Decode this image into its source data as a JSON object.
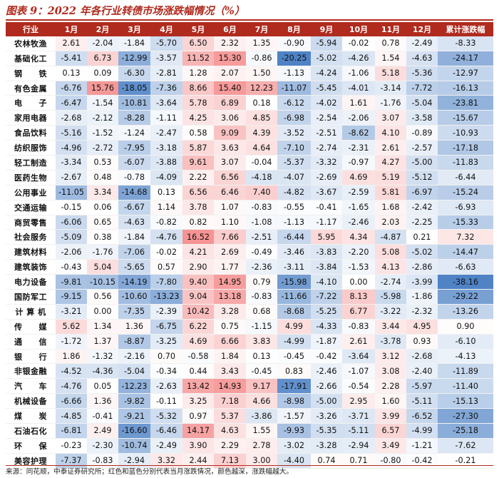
{
  "title": "图表 9：2022 年各行业转债市场涨跌幅情况（%）",
  "header": [
    "行业",
    "1月",
    "2月",
    "3月",
    "4月",
    "5月",
    "6月",
    "7月",
    "8月",
    "9月",
    "10月",
    "11月",
    "12月",
    "累计涨跌幅"
  ],
  "rows": [
    {
      "industry": "农林牧渔",
      "values": [
        "2.61",
        "-2.04",
        "-1.84",
        "-5.70",
        "6.50",
        "2.32",
        "1.35",
        "-0.90",
        "-5.94",
        "-0.02",
        "0.78",
        "-2.49",
        "-8.33"
      ]
    },
    {
      "industry": "基础化工",
      "values": [
        "-5.41",
        "6.73",
        "-12.99",
        "-3.57",
        "11.52",
        "15.30",
        "-0.86",
        "-20.25",
        "-5.02",
        "-4.26",
        "1.54",
        "-4.63",
        "-24.17"
      ]
    },
    {
      "industry": "钢　　铁",
      "values": [
        "0.13",
        "0.09",
        "-6.30",
        "-2.81",
        "1.28",
        "2.07",
        "1.50",
        "-1.13",
        "-4.24",
        "-1.06",
        "5.18",
        "-5.36",
        "-12.97"
      ]
    },
    {
      "industry": "有色金属",
      "values": [
        "-6.76",
        "15.76",
        "-18.05",
        "-7.36",
        "8.66",
        "15.40",
        "12.23",
        "-11.07",
        "-5.45",
        "-4.01",
        "-3.14",
        "-7.72",
        "-16.13"
      ]
    },
    {
      "industry": "电　　子",
      "values": [
        "-6.47",
        "-1.54",
        "-10.81",
        "-3.64",
        "5.78",
        "6.89",
        "0.18",
        "-6.12",
        "-4.02",
        "1.61",
        "-1.76",
        "-5.04",
        "-23.81"
      ]
    },
    {
      "industry": "家用电器",
      "values": [
        "-2.68",
        "-2.12",
        "-8.28",
        "-1.11",
        "4.25",
        "3.06",
        "4.85",
        "-6.98",
        "-2.54",
        "-2.06",
        "3.07",
        "-3.58",
        "-15.67"
      ]
    },
    {
      "industry": "食品饮料",
      "values": [
        "-5.16",
        "-1.52",
        "-1.24",
        "-2.47",
        "0.58",
        "9.09",
        "4.39",
        "-3.52",
        "-2.51",
        "-8.62",
        "4.10",
        "-0.89",
        "-10.93"
      ]
    },
    {
      "industry": "纺织服饰",
      "values": [
        "-4.96",
        "-2.72",
        "-7.95",
        "-3.18",
        "5.87",
        "3.63",
        "4.64",
        "-7.10",
        "-2.74",
        "-2.31",
        "2.61",
        "-2.57",
        "-17.18"
      ]
    },
    {
      "industry": "轻工制造",
      "values": [
        "-3.34",
        "0.53",
        "-6.07",
        "-3.88",
        "9.61",
        "3.07",
        "-0.04",
        "-5.37",
        "-3.32",
        "-0.97",
        "4.27",
        "-5.00",
        "-11.83"
      ]
    },
    {
      "industry": "医药生物",
      "values": [
        "-2.67",
        "0.48",
        "-0.78",
        "-4.09",
        "2.22",
        "6.56",
        "-4.18",
        "-4.07",
        "-2.69",
        "4.69",
        "5.19",
        "-5.12",
        "-6.44"
      ]
    },
    {
      "industry": "公用事业",
      "values": [
        "-11.05",
        "3.34",
        "-14.68",
        "0.13",
        "6.56",
        "6.46",
        "7.40",
        "-4.82",
        "-3.67",
        "-2.59",
        "5.81",
        "-6.97",
        "-15.24"
      ]
    },
    {
      "industry": "交通运输",
      "values": [
        "-0.15",
        "0.06",
        "-6.67",
        "1.14",
        "3.78",
        "1.07",
        "-0.83",
        "-0.55",
        "-0.41",
        "-1.65",
        "1.68",
        "-2.42",
        "-6.93"
      ]
    },
    {
      "industry": "商贸零售",
      "values": [
        "-6.06",
        "0.65",
        "-4.63",
        "-0.82",
        "0.82",
        "1.10",
        "-1.08",
        "-1.13",
        "-1.17",
        "-2.46",
        "2.03",
        "-2.25",
        "-15.33"
      ]
    },
    {
      "industry": "社会服务",
      "values": [
        "-5.09",
        "0.38",
        "-1.84",
        "-4.76",
        "16.52",
        "7.66",
        "-2.51",
        "-6.44",
        "5.95",
        "4.34",
        "-4.87",
        "0.21",
        "7.32"
      ]
    },
    {
      "industry": "建筑材料",
      "values": [
        "-2.06",
        "-1.76",
        "-7.06",
        "-0.02",
        "4.21",
        "2.69",
        "-0.49",
        "-3.46",
        "-3.83",
        "-2.20",
        "5.08",
        "-5.02",
        "-14.47"
      ]
    },
    {
      "industry": "建筑装饰",
      "values": [
        "-0.43",
        "5.04",
        "-5.65",
        "0.57",
        "2.90",
        "1.77",
        "-2.36",
        "-3.11",
        "-3.84",
        "-1.53",
        "4.13",
        "-2.86",
        "-6.63"
      ]
    },
    {
      "industry": "电力设备",
      "values": [
        "-9.81",
        "-10.15",
        "-14.19",
        "-7.80",
        "9.40",
        "14.95",
        "0.79",
        "-15.98",
        "-4.10",
        "0.00",
        "-2.74",
        "-3.99",
        "-38.16"
      ]
    },
    {
      "industry": "国防军工",
      "values": [
        "-9.15",
        "0.56",
        "-10.60",
        "-13.23",
        "9.04",
        "13.18",
        "-0.83",
        "-11.66",
        "-7.22",
        "8.13",
        "-5.98",
        "-1.86",
        "-29.22"
      ]
    },
    {
      "industry": "计 算 机",
      "values": [
        "-3.21",
        "0.00",
        "-7.35",
        "-2.39",
        "10.42",
        "3.28",
        "0.68",
        "-8.68",
        "-5.25",
        "6.77",
        "-3.22",
        "-2.32",
        "-13.26"
      ]
    },
    {
      "industry": "传　　媒",
      "values": [
        "5.62",
        "1.34",
        "1.36",
        "-6.75",
        "6.22",
        "0.75",
        "-1.15",
        "4.99",
        "-4.33",
        "-0.83",
        "3.44",
        "4.95",
        "0.90"
      ]
    },
    {
      "industry": "通　　信",
      "values": [
        "-1.72",
        "1.37",
        "-8.87",
        "-3.25",
        "4.69",
        "6.66",
        "3.83",
        "-4.99",
        "-1.87",
        "2.61",
        "-3.78",
        "0.93",
        "-6.10"
      ]
    },
    {
      "industry": "银　　行",
      "values": [
        "1.86",
        "-1.32",
        "-2.16",
        "0.70",
        "-0.58",
        "1.84",
        "0.13",
        "-0.45",
        "-0.42",
        "-3.64",
        "3.12",
        "-2.68",
        "-4.13"
      ]
    },
    {
      "industry": "非银金融",
      "values": [
        "-4.52",
        "-4.36",
        "-5.04",
        "-0.34",
        "0.44",
        "3.43",
        "-0.45",
        "0.83",
        "-2.46",
        "-1.07",
        "3.08",
        "-2.40",
        "-11.89"
      ]
    },
    {
      "industry": "汽　　车",
      "values": [
        "-4.76",
        "0.05",
        "-12.23",
        "-2.63",
        "13.42",
        "14.93",
        "9.17",
        "-17.91",
        "-2.66",
        "-0.54",
        "2.28",
        "-5.97",
        "-11.40"
      ]
    },
    {
      "industry": "机械设备",
      "values": [
        "-6.66",
        "1.36",
        "-9.82",
        "-0.11",
        "3.25",
        "7.18",
        "4.66",
        "-8.98",
        "-5.00",
        "2.95",
        "1.60",
        "-5.11",
        "-15.13"
      ]
    },
    {
      "industry": "煤　　炭",
      "values": [
        "-4.85",
        "-0.41",
        "-9.21",
        "-5.32",
        "0.97",
        "5.37",
        "-3.86",
        "-1.57",
        "-3.26",
        "-3.71",
        "3.99",
        "-6.52",
        "-27.30"
      ]
    },
    {
      "industry": "石油石化",
      "values": [
        "-6.81",
        "2.49",
        "-16.60",
        "-6.46",
        "14.17",
        "4.63",
        "1.55",
        "-9.93",
        "-5.35",
        "-5.11",
        "6.57",
        "-4.99",
        "-25.18"
      ]
    },
    {
      "industry": "环　　保",
      "values": [
        "-0.23",
        "-2.30",
        "-10.74",
        "-2.49",
        "3.90",
        "2.29",
        "2.78",
        "-3.02",
        "-3.28",
        "-2.94",
        "3.49",
        "-1.21",
        "-7.62"
      ]
    },
    {
      "industry": "美容护理",
      "values": [
        "-7.37",
        "-0.83",
        "-2.94",
        "3.32",
        "2.44",
        "7.13",
        "3.00",
        "-4.40",
        "0.74",
        "0.71",
        "-0.80",
        "-0.42",
        "-0.21"
      ]
    }
  ],
  "source": "来源：同花顺，中泰证券研究所；红色和蓝色分别代表当月涨跌情况，颜色越深，涨跌幅越大。",
  "colors": {
    "header_bg": "#b02a1e",
    "title_color": "#b02a1e",
    "positive_max": "#f47c7c",
    "negative_max": "#4f83c6",
    "neutral": "#ffffff"
  }
}
